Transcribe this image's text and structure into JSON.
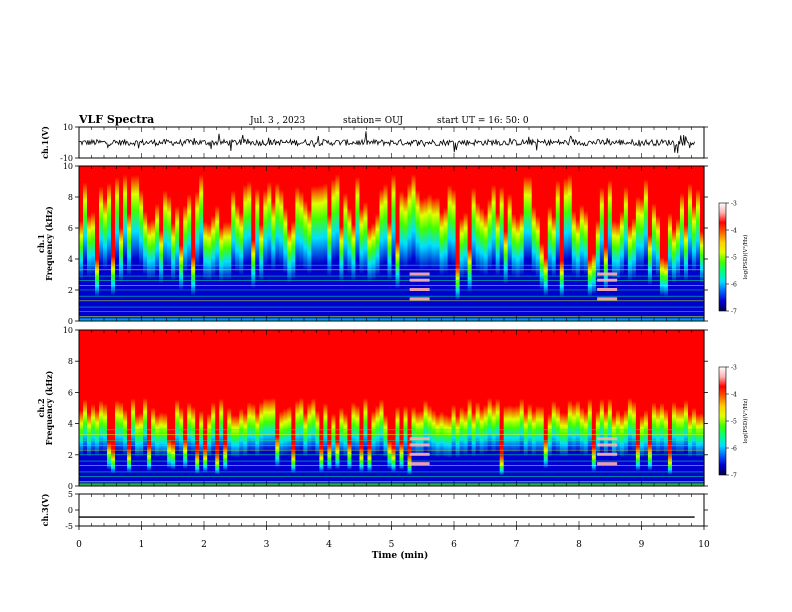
{
  "header": {
    "title": "VLF Spectra",
    "date": "Jul. 3 , 2023",
    "station": "station= OUJ",
    "start": "start UT = 16: 50: 0"
  },
  "colorbar_label": "log(PSD)(V²/Hz)",
  "colors": {
    "spectrum": [
      "#00004d",
      "#0000d0",
      "#0060ff",
      "#00e0ff",
      "#00ff80",
      "#40ff00",
      "#e0ff00",
      "#ffd000",
      "#ff6000",
      "#ff0000",
      "#ffb0b0",
      "#ffffff"
    ]
  },
  "chart_data": [
    {
      "type": "line",
      "ylabel": "ch.1(V)",
      "ylim": [
        -10,
        10
      ],
      "yticks": [
        "10",
        "-10"
      ],
      "description_of_signal": "noisy waveform around ~0 V",
      "level": 0
    },
    {
      "type": "heatmap",
      "ylabel": "ch.1\nFrequency (kHz)",
      "ylim": [
        0,
        10
      ],
      "yticks": [
        "0",
        "2",
        "4",
        "6",
        "8",
        "10"
      ],
      "colorbar": {
        "min": -7,
        "max": -3,
        "ticks": [
          "-3",
          "-4",
          "-5",
          "-6",
          "-7"
        ]
      }
    },
    {
      "type": "heatmap",
      "ylabel": "ch.2\nFrequency (kHz)",
      "ylim": [
        0,
        10
      ],
      "yticks": [
        "0",
        "2",
        "4",
        "6",
        "8",
        "10"
      ],
      "colorbar": {
        "min": -7,
        "max": -3,
        "ticks": [
          "-3",
          "-4",
          "-5",
          "-6",
          "-7"
        ]
      }
    },
    {
      "type": "line",
      "ylabel": "ch.3(V)",
      "ylim": [
        -5,
        5
      ],
      "yticks": [
        "5",
        "0",
        "-5"
      ],
      "level": -2.2
    }
  ],
  "x_axis": {
    "label": "Time (min)",
    "range": [
      0,
      10
    ],
    "ticks": [
      "0",
      "1",
      "2",
      "3",
      "4",
      "5",
      "6",
      "7",
      "8",
      "9",
      "10"
    ]
  }
}
